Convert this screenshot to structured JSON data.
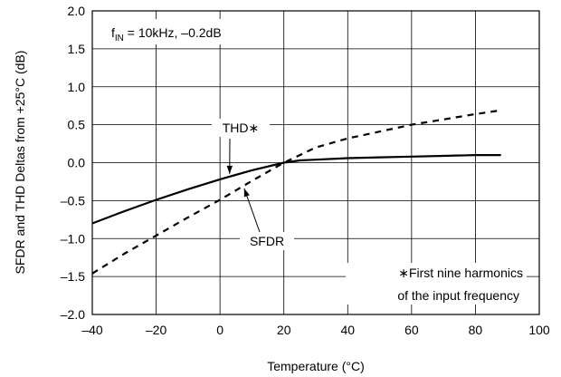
{
  "chart_data": {
    "type": "line",
    "xlabel": "Temperature (°C)",
    "ylabel": "SFDR and THD Deltas from +25°C (dB)",
    "xlim": [
      -40,
      100
    ],
    "ylim": [
      -2.0,
      2.0
    ],
    "x_ticks": [
      -40,
      -20,
      0,
      20,
      40,
      60,
      80,
      100
    ],
    "x_tick_labels": [
      "–40",
      "–20",
      "0",
      "20",
      "40",
      "60",
      "80",
      "100"
    ],
    "y_ticks": [
      -2.0,
      -1.5,
      -1.0,
      -0.5,
      0.0,
      0.5,
      1.0,
      1.5,
      2.0
    ],
    "y_tick_labels": [
      "–2.0",
      "–1.5",
      "–1.0",
      "–0.5",
      "0.0",
      "0.5",
      "1.0",
      "1.5",
      "2.0"
    ],
    "grid": true,
    "condition_label": {
      "main": "f",
      "sub": "IN",
      "rest": " = 10kHz, –0.2dB"
    },
    "footnote_lines": [
      "∗First nine harmonics",
      "of the input frequency"
    ],
    "series": [
      {
        "name": "THD∗",
        "style": "solid",
        "x": [
          -40,
          -30,
          -20,
          -10,
          0,
          10,
          20,
          25,
          30,
          40,
          50,
          60,
          70,
          80,
          88
        ],
        "y": [
          -0.8,
          -0.64,
          -0.49,
          -0.35,
          -0.22,
          -0.1,
          0.0,
          0.03,
          0.04,
          0.06,
          0.07,
          0.08,
          0.09,
          0.1,
          0.1
        ]
      },
      {
        "name": "SFDR",
        "style": "dashed",
        "x": [
          -40,
          -30,
          -20,
          -10,
          0,
          10,
          20,
          25,
          30,
          40,
          50,
          60,
          70,
          80,
          88
        ],
        "y": [
          -1.46,
          -1.2,
          -0.96,
          -0.72,
          -0.49,
          -0.24,
          0.0,
          0.1,
          0.2,
          0.32,
          0.41,
          0.5,
          0.57,
          0.64,
          0.69
        ]
      }
    ],
    "annotations": [
      {
        "series": "THD∗",
        "text": "THD∗",
        "at_x": 3
      },
      {
        "series": "SFDR",
        "text": "SFDR",
        "at_x": 7
      }
    ]
  }
}
